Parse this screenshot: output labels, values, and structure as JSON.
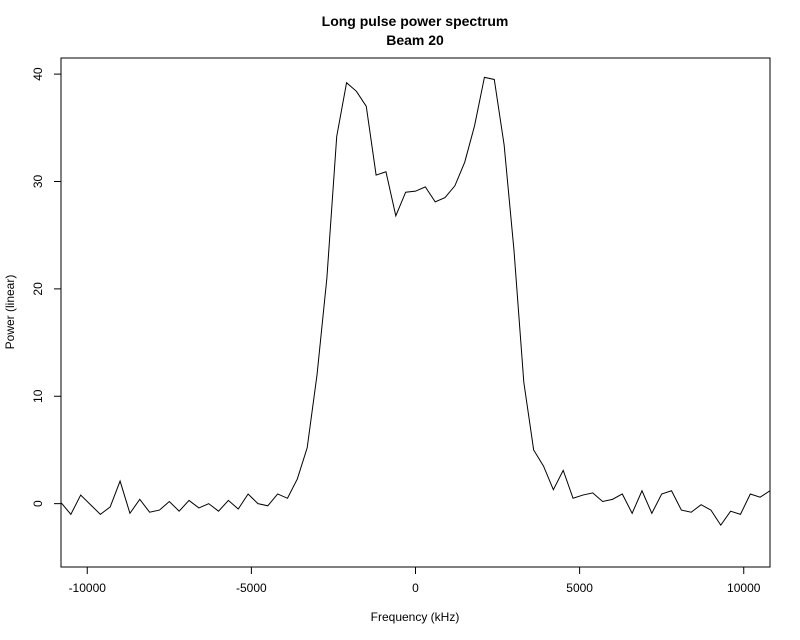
{
  "chart_data": {
    "type": "line",
    "title": "Long pulse power spectrum",
    "subtitle": "Beam 20",
    "x_label": "Frequency (kHz)",
    "y_label": "Power (linear)",
    "x": [
      -10800,
      -10500,
      -10200,
      -9900,
      -9600,
      -9300,
      -9000,
      -8700,
      -8400,
      -8100,
      -7800,
      -7500,
      -7200,
      -6900,
      -6600,
      -6300,
      -6000,
      -5700,
      -5400,
      -5100,
      -4800,
      -4500,
      -4200,
      -3900,
      -3600,
      -3300,
      -3000,
      -2700,
      -2400,
      -2100,
      -1800,
      -1500,
      -1200,
      -900,
      -600,
      -300,
      0,
      300,
      600,
      900,
      1200,
      1500,
      1800,
      2100,
      2400,
      2700,
      3000,
      3300,
      3600,
      3900,
      4200,
      4500,
      4800,
      5100,
      5400,
      5700,
      6000,
      6300,
      6600,
      6900,
      7200,
      7500,
      7800,
      8100,
      8400,
      8700,
      9000,
      9300,
      9600,
      9900,
      10200,
      10500,
      10800
    ],
    "series": [
      {
        "name": "Power",
        "color": "#000000",
        "values": [
          0.1,
          -1.0,
          0.8,
          -0.1,
          -1.0,
          -0.3,
          2.1,
          -0.9,
          0.4,
          -0.8,
          -0.6,
          0.2,
          -0.7,
          0.3,
          -0.4,
          0.0,
          -0.7,
          0.3,
          -0.5,
          0.9,
          0.0,
          -0.2,
          0.9,
          0.5,
          2.3,
          5.2,
          12,
          21,
          34.2,
          39.2,
          38.4,
          37,
          30.6,
          30.9,
          26.8,
          29,
          29.1,
          29.5,
          28.1,
          28.5,
          29.6,
          31.8,
          35.2,
          39.7,
          39.5,
          33.4,
          23.6,
          11.3,
          5,
          3.5,
          1.3,
          3.1,
          0.5,
          0.8,
          1.0,
          0.2,
          0.4,
          0.9,
          -0.9,
          1.2,
          -0.9,
          0.9,
          1.2,
          -0.6,
          -0.8,
          -0.1,
          -0.6,
          -2.0,
          -0.7,
          -1.0,
          0.9,
          0.6,
          1.2
        ]
      }
    ],
    "xlim": [
      -10800,
      10800
    ],
    "ylim": [
      -5.9,
      41.5
    ],
    "xticks": [
      -10000,
      -5000,
      0,
      5000,
      10000
    ],
    "yticks": [
      0,
      10,
      20,
      30,
      40
    ]
  }
}
